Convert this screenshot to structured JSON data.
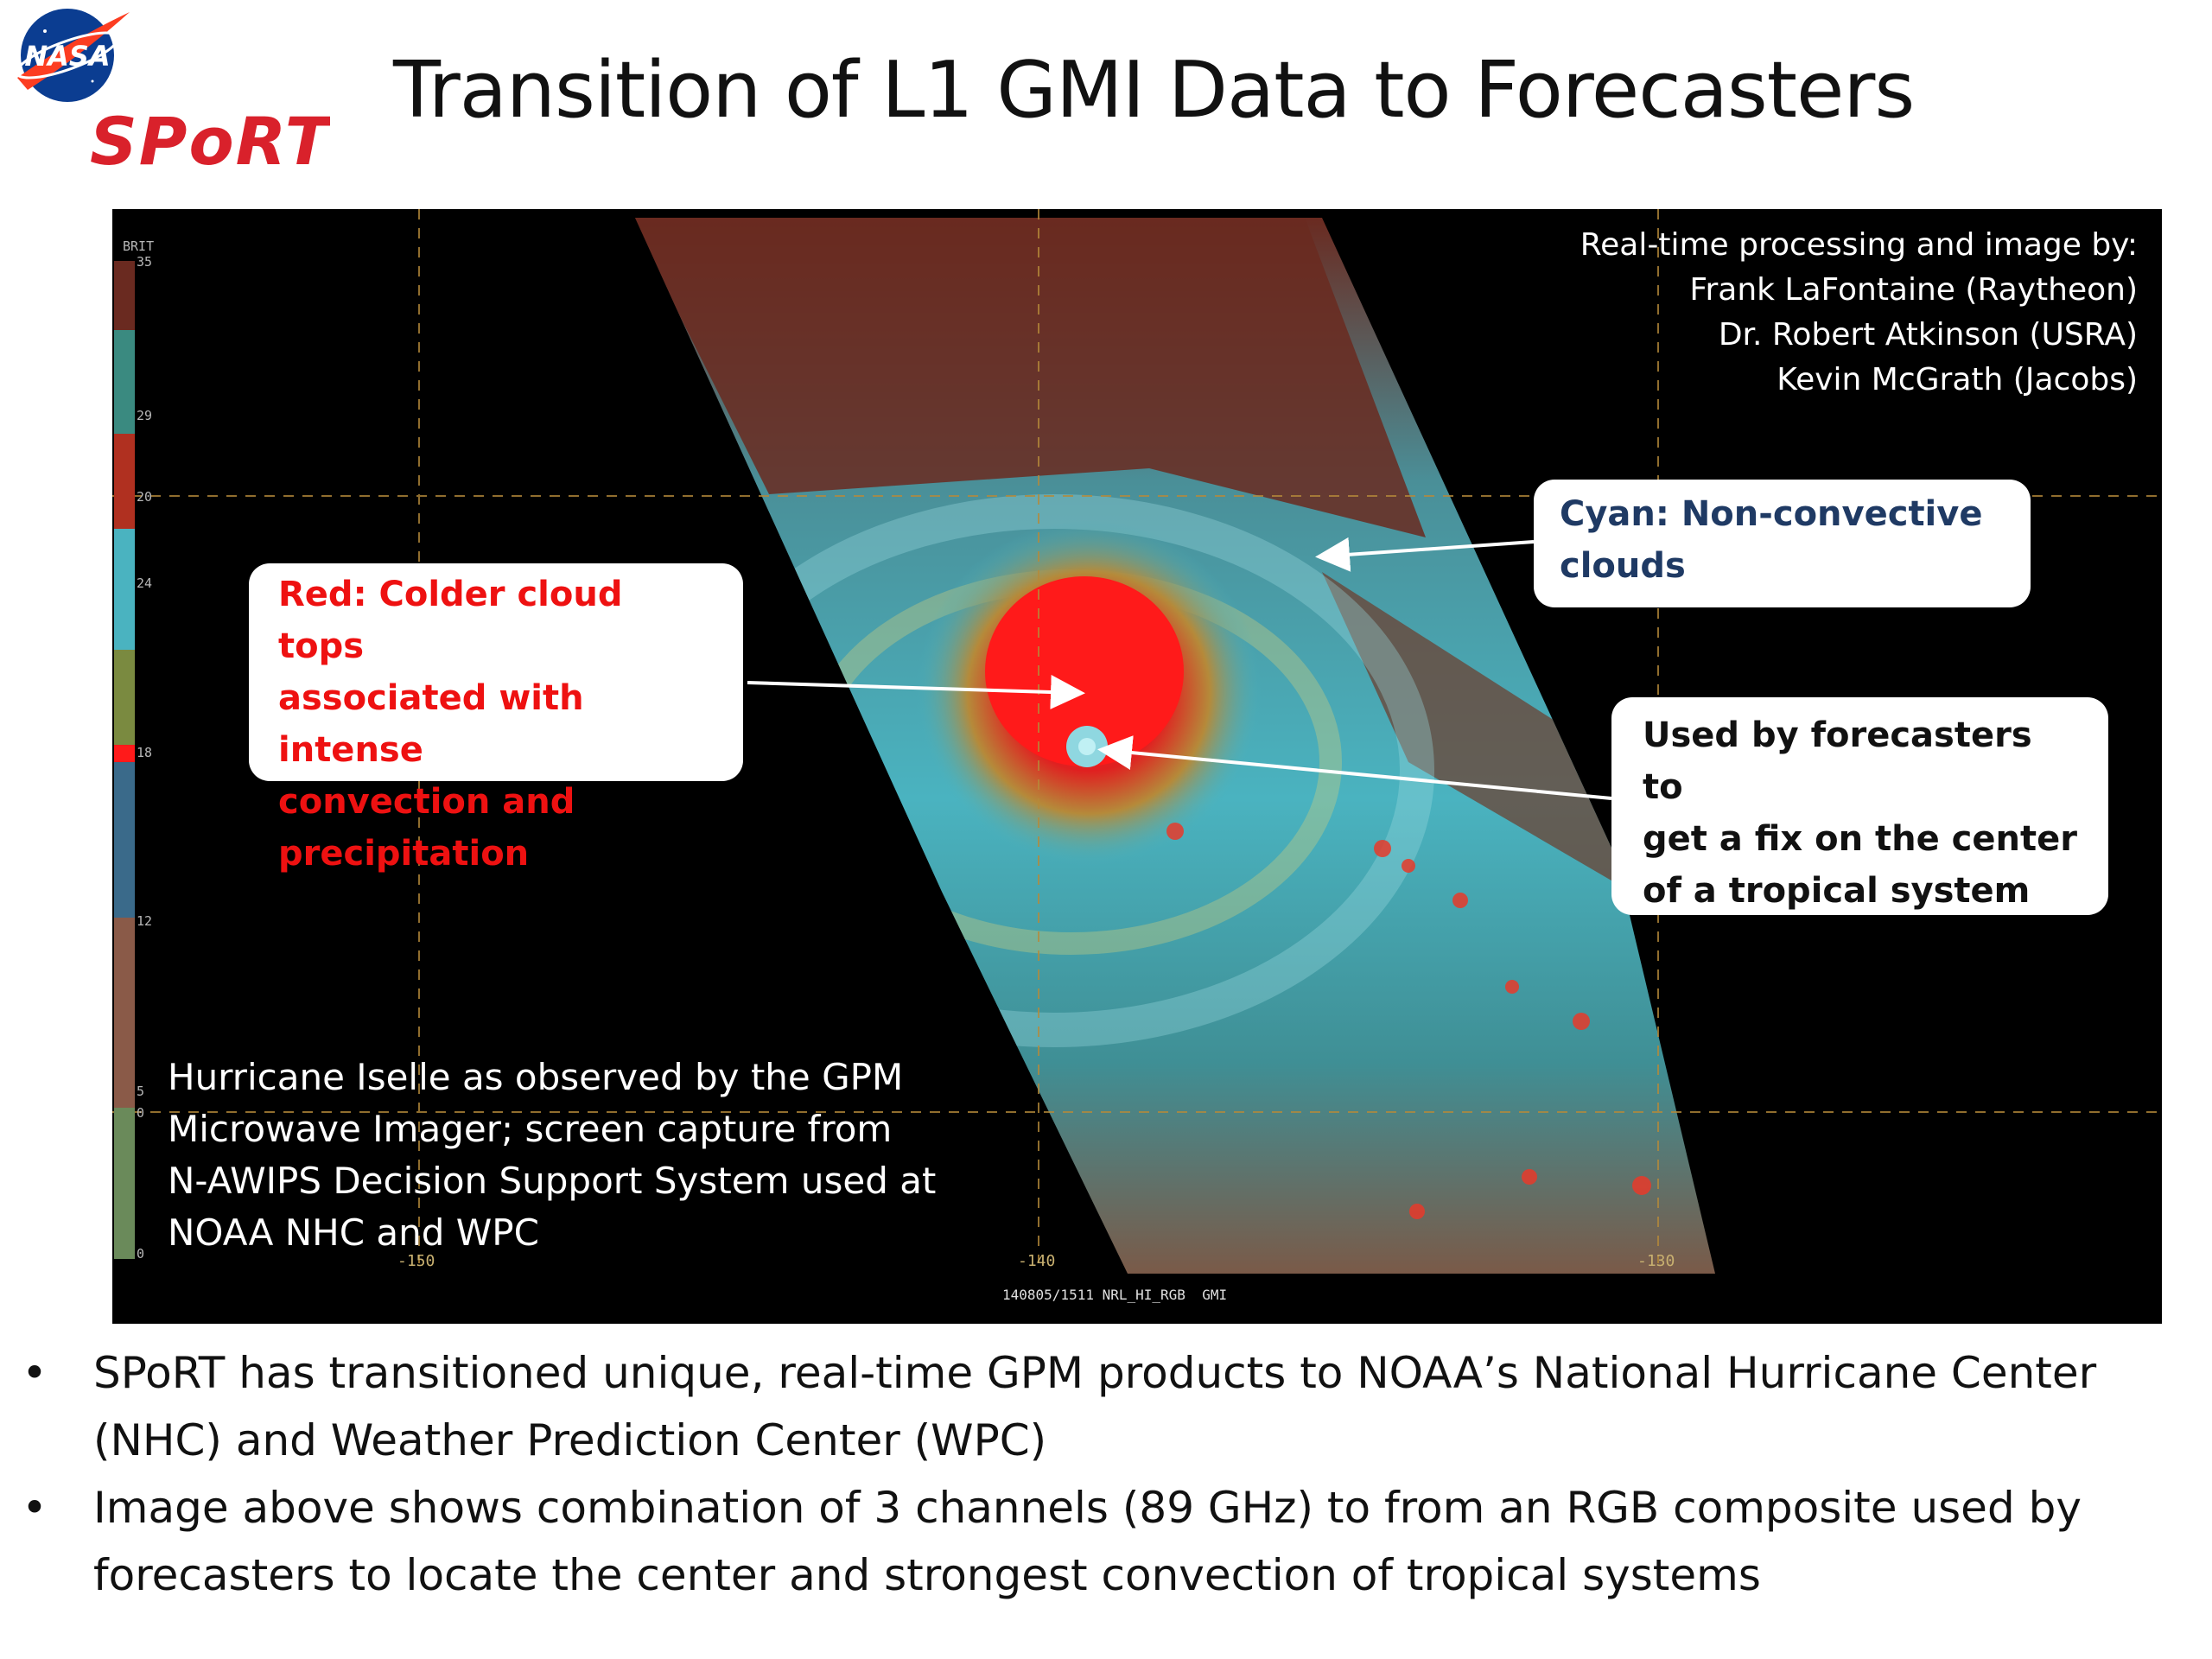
{
  "header": {
    "title": "Transition of L1 GMI Data to Forecasters",
    "nasa_logo_text": "NASA",
    "sport_logo_text": "SPoRT"
  },
  "image": {
    "credit_lines": [
      "Real-time processing and image by:",
      "Frank LaFontaine (Raytheon)",
      "Dr. Robert Atkinson (USRA)",
      "Kevin McGrath (Jacobs)"
    ],
    "caption_lines": [
      "Hurricane Iselle as observed by the GPM",
      "Microwave Imager; screen capture from",
      "N-AWIPS Decision Support System used at",
      "NOAA NHC and WPC"
    ],
    "callouts": {
      "red_lines": [
        "Red:  Colder cloud tops",
        "associated with intense",
        "convection and",
        "precipitation"
      ],
      "cyan_lines": [
        "Cyan:  Non-convective",
        "clouds"
      ],
      "fix_lines": [
        "Used by forecasters to",
        "get a fix on the center",
        "of a tropical system"
      ]
    },
    "scale": {
      "header": "BRIT",
      "labels": [
        "35",
        "29",
        "20",
        "24",
        "18",
        "12",
        "5",
        "0",
        "0"
      ]
    },
    "lon_labels": [
      "-150",
      "-140",
      "-130"
    ],
    "footer": "140805/1511 NRL_HI_RGB  GMI",
    "colors": {
      "red": "#ff2020",
      "cyan": "#4ab3c0",
      "brown": "#6a2a20",
      "callout_red_text": "#ee1111",
      "callout_cyan_text": "#1f3a64"
    }
  },
  "bullets": [
    {
      "symbol": "•",
      "lines": [
        "SPoRT has transitioned unique, real-time GPM products to NOAA’s National Hurricane Center",
        "(NHC) and Weather Prediction Center (WPC)"
      ]
    },
    {
      "symbol": "•",
      "lines": [
        "Image above shows combination of 3 channels (89 GHz) to from an RGB composite used by",
        "forecasters to locate the center and strongest convection of tropical systems"
      ]
    }
  ]
}
